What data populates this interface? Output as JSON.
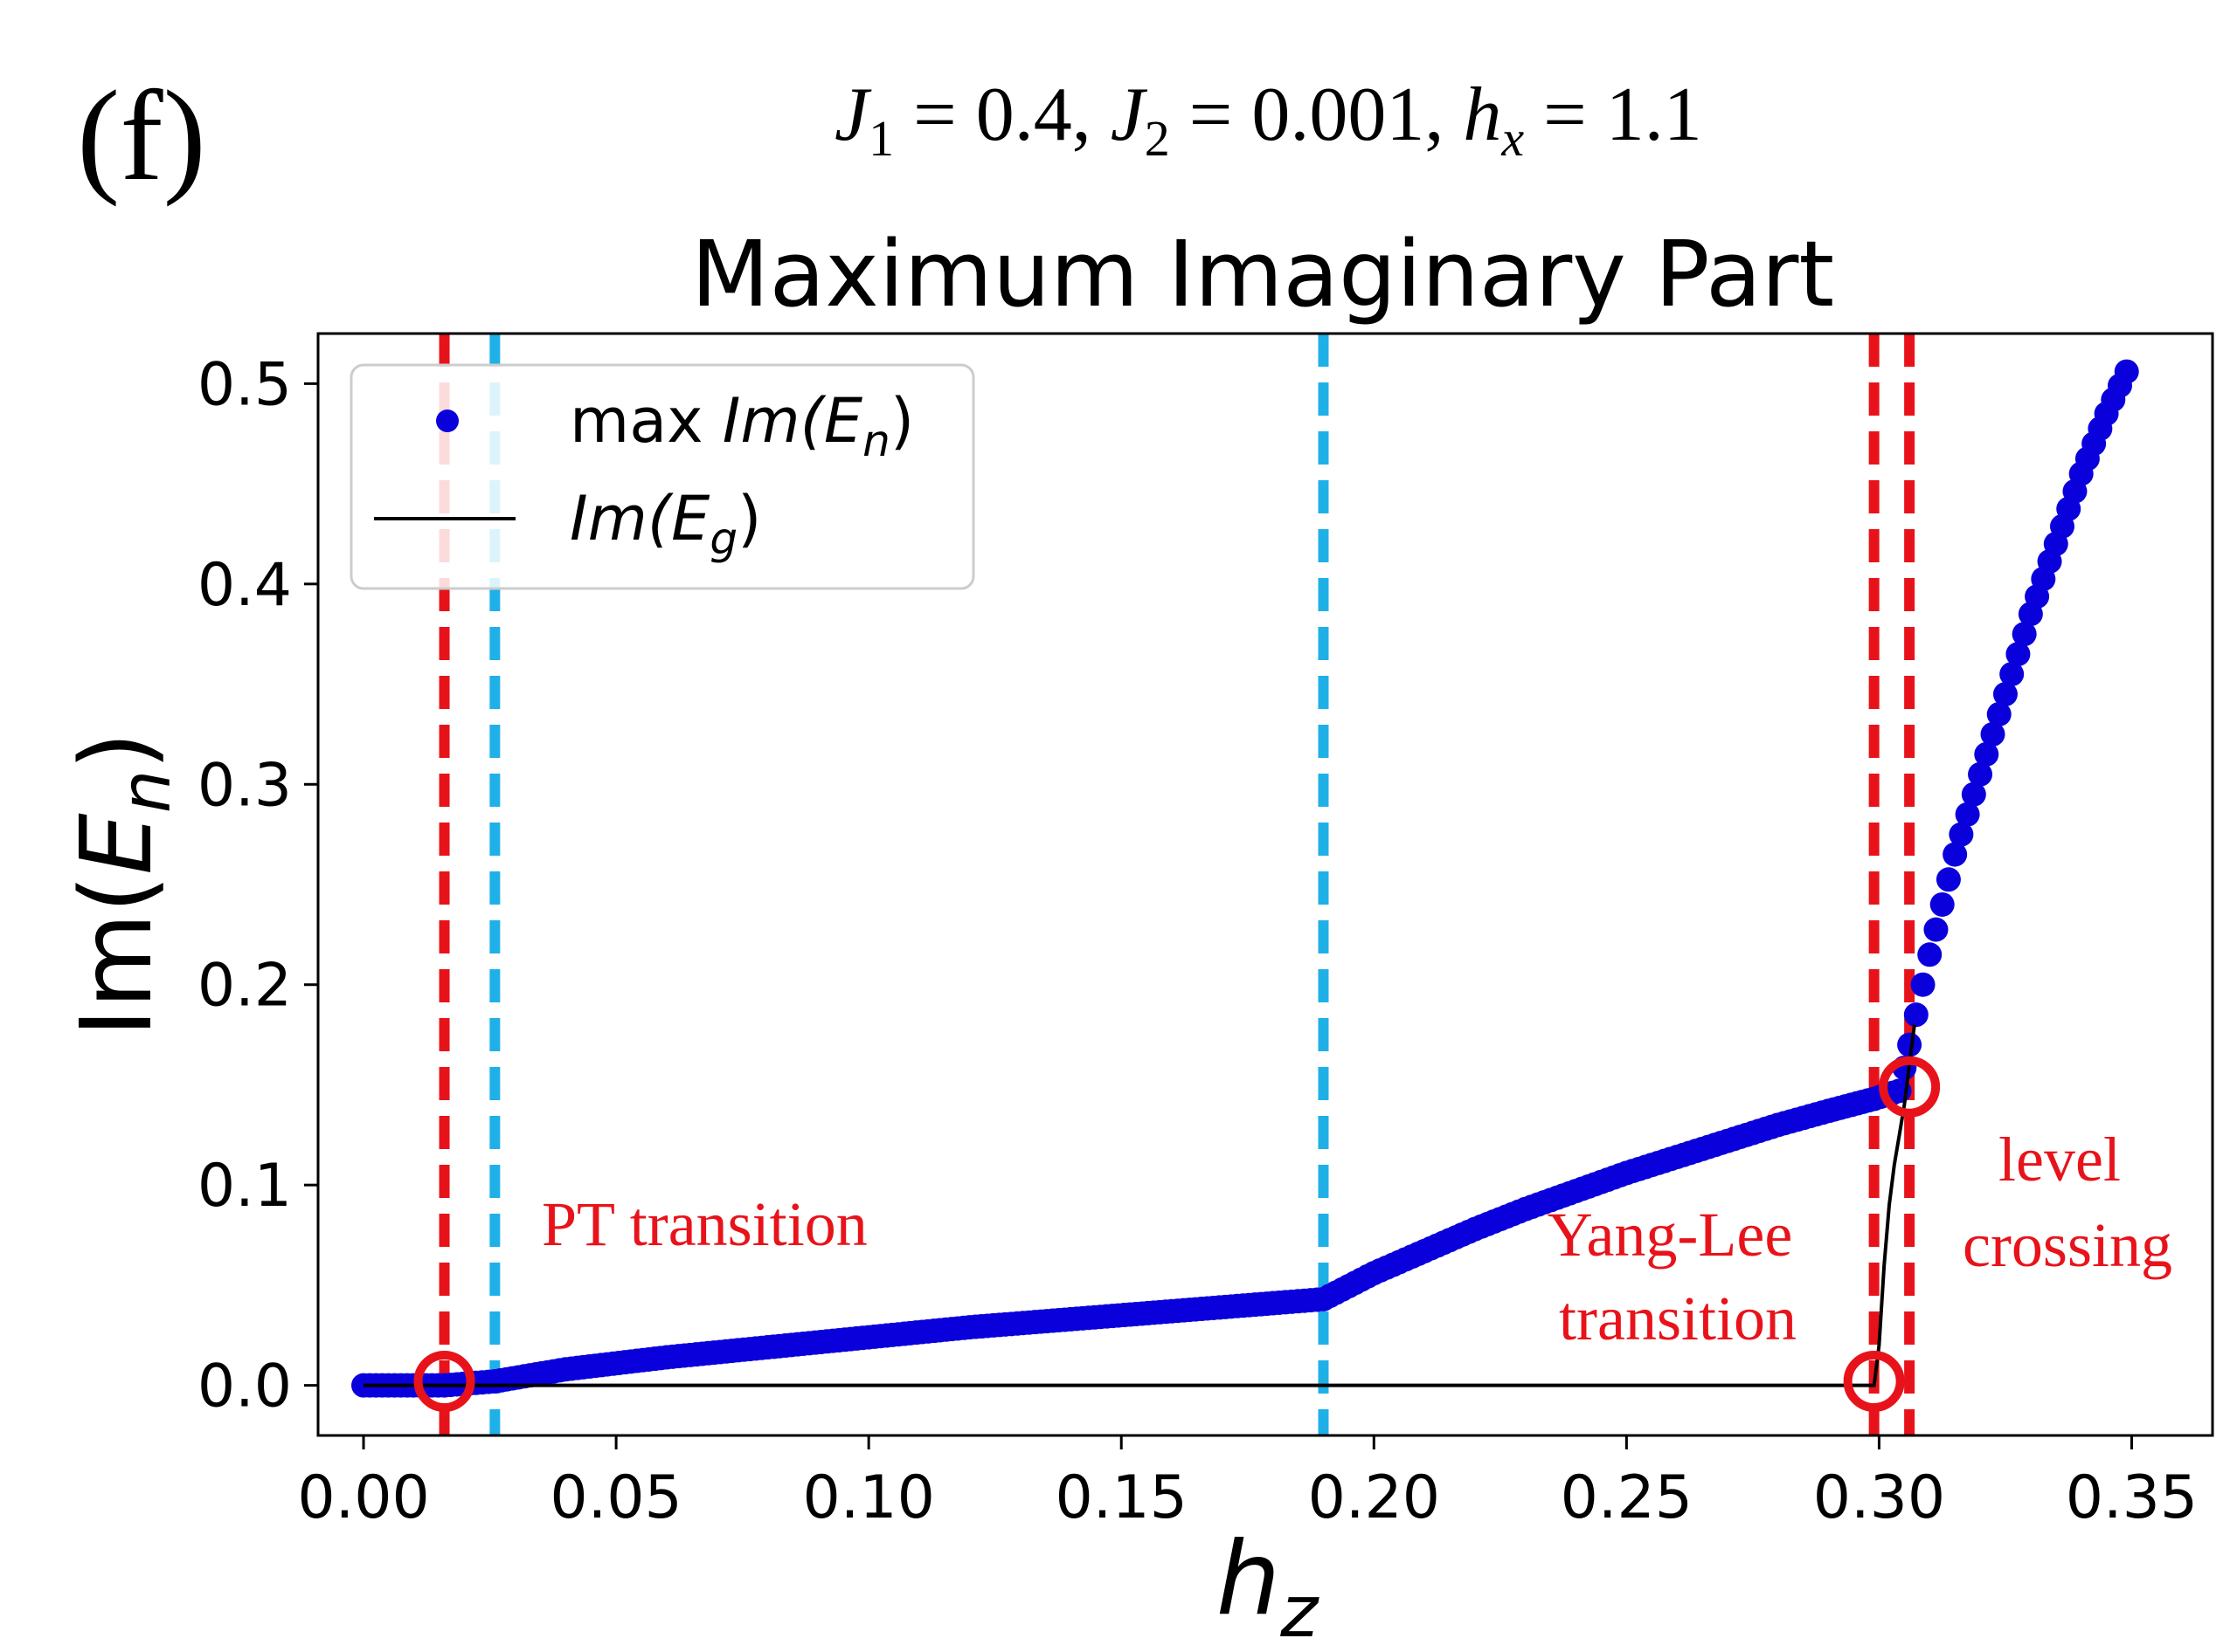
{
  "panel_label": "(f)",
  "params_label": {
    "J1": "J",
    "J1_sub": "1",
    "eq1": " = 0.4, ",
    "J2": "J",
    "J2_sub": "2",
    "eq2": " = 0.001, ",
    "hx": "h",
    "hx_sub": "x",
    "eq3": " = 1.1"
  },
  "colors": {
    "series": "#0a00dc",
    "ground": "#000000",
    "red": "#e8131a",
    "cyan": "#1fb0e8",
    "axis": "#000000"
  },
  "chart_data": {
    "type": "scatter",
    "title": "Maximum Imaginary Part",
    "xlabel": {
      "base": "h",
      "sub": "z"
    },
    "ylabel": {
      "pre": "Im(",
      "base": "E",
      "sub": "n",
      "post": ")"
    },
    "xlim": [
      -0.009,
      0.366
    ],
    "ylim": [
      -0.025,
      0.525
    ],
    "xticks": [
      {
        "v": 0.0,
        "label": "0.00"
      },
      {
        "v": 0.05,
        "label": "0.05"
      },
      {
        "v": 0.1,
        "label": "0.10"
      },
      {
        "v": 0.15,
        "label": "0.15"
      },
      {
        "v": 0.2,
        "label": "0.20"
      },
      {
        "v": 0.25,
        "label": "0.25"
      },
      {
        "v": 0.3,
        "label": "0.30"
      },
      {
        "v": 0.35,
        "label": "0.35"
      }
    ],
    "yticks": [
      {
        "v": 0.0,
        "label": "0.0"
      },
      {
        "v": 0.1,
        "label": "0.1"
      },
      {
        "v": 0.2,
        "label": "0.2"
      },
      {
        "v": 0.3,
        "label": "0.3"
      },
      {
        "v": 0.4,
        "label": "0.4"
      },
      {
        "v": 0.5,
        "label": "0.5"
      }
    ],
    "legend": {
      "position": "upper-left",
      "entries": [
        {
          "kind": "marker",
          "prefix": "max ",
          "label": "Im(",
          "base": "E",
          "sub": "n",
          "post": ")"
        },
        {
          "kind": "line",
          "prefix": "",
          "label": "Im(",
          "base": "E",
          "sub": "g",
          "post": ")"
        }
      ]
    },
    "series": [
      {
        "name": "max Im(E_n)",
        "kind": "markers",
        "points": [
          [
            0.0,
            0.0
          ],
          [
            0.016,
            0.0
          ],
          [
            0.026,
            0.002
          ],
          [
            0.04,
            0.008
          ],
          [
            0.06,
            0.014
          ],
          [
            0.08,
            0.019
          ],
          [
            0.1,
            0.024
          ],
          [
            0.12,
            0.029
          ],
          [
            0.14,
            0.033
          ],
          [
            0.16,
            0.037
          ],
          [
            0.18,
            0.041
          ],
          [
            0.19,
            0.043
          ],
          [
            0.2,
            0.056
          ],
          [
            0.21,
            0.067
          ],
          [
            0.22,
            0.078
          ],
          [
            0.23,
            0.088
          ],
          [
            0.24,
            0.097
          ],
          [
            0.25,
            0.106
          ],
          [
            0.26,
            0.114
          ],
          [
            0.27,
            0.122
          ],
          [
            0.28,
            0.13
          ],
          [
            0.29,
            0.137
          ],
          [
            0.299,
            0.143
          ],
          [
            0.304,
            0.147
          ],
          [
            0.306,
            0.17
          ],
          [
            0.31,
            0.215
          ],
          [
            0.315,
            0.265
          ],
          [
            0.32,
            0.305
          ],
          [
            0.325,
            0.345
          ],
          [
            0.33,
            0.385
          ],
          [
            0.335,
            0.42
          ],
          [
            0.34,
            0.455
          ],
          [
            0.345,
            0.485
          ],
          [
            0.349,
            0.506
          ]
        ]
      },
      {
        "name": "Im(E_g)",
        "kind": "line",
        "points": [
          [
            0.0,
            0.0
          ],
          [
            0.299,
            0.0
          ],
          [
            0.3,
            0.02
          ],
          [
            0.301,
            0.06
          ],
          [
            0.302,
            0.09
          ],
          [
            0.303,
            0.11
          ],
          [
            0.304,
            0.125
          ],
          [
            0.305,
            0.14
          ],
          [
            0.306,
            0.16
          ],
          [
            0.307,
            0.18
          ]
        ]
      }
    ],
    "vlines": [
      {
        "x": 0.016,
        "color": "red"
      },
      {
        "x": 0.026,
        "color": "cyan"
      },
      {
        "x": 0.19,
        "color": "cyan"
      },
      {
        "x": 0.299,
        "color": "red"
      },
      {
        "x": 0.306,
        "color": "red"
      }
    ],
    "circles": [
      {
        "x": 0.016,
        "y": 0.002
      },
      {
        "x": 0.299,
        "y": 0.002
      },
      {
        "x": 0.306,
        "y": 0.149
      }
    ],
    "annotations": [
      {
        "lines": [
          "PT transition"
        ]
      },
      {
        "lines": [
          "Yang-Lee",
          "transition"
        ]
      },
      {
        "lines": [
          "level",
          "crossing"
        ]
      }
    ]
  }
}
